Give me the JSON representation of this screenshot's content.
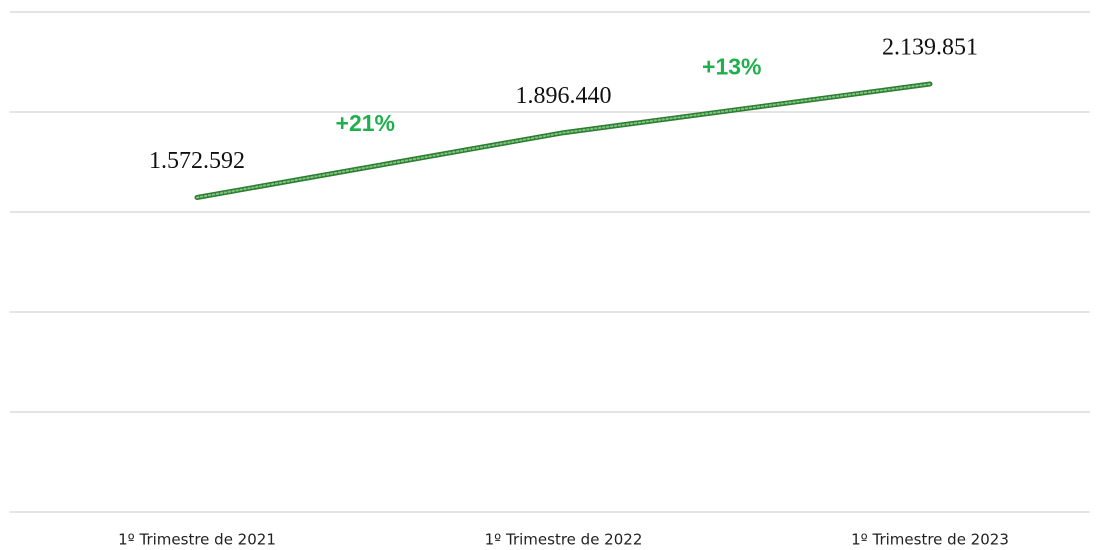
{
  "chart_data": {
    "type": "line",
    "categories": [
      "1º Trimestre de 2021",
      "1º Trimestre de 2022",
      "1º Trimestre de 2023"
    ],
    "values": [
      1572592,
      1896440,
      2139851
    ],
    "value_labels": [
      "1.572.592",
      "1.896.440",
      "2.139.851"
    ],
    "color": "#2e7d32",
    "annotations": [
      {
        "text": "+21%"
      },
      {
        "text": "+13%"
      }
    ],
    "annotation_color": "#1fb04e",
    "ylim": [
      0,
      2500000
    ],
    "yticks": [
      0,
      500000,
      1000000,
      1500000,
      2000000,
      2500000
    ],
    "grid": true
  }
}
